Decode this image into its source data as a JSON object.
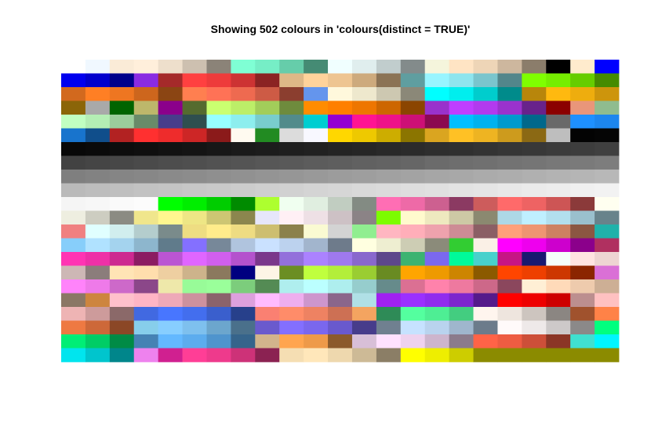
{
  "chart_data": {
    "type": "heatmap",
    "title": "Showing 502 colours in 'colours(distinct = TRUE)'",
    "xlabel": "",
    "ylabel": "",
    "grid": false,
    "legend": "none",
    "columns": 23,
    "rows": 22,
    "colours": [
      "#ffffff",
      "#f0f8ff",
      "#faebd7",
      "#ffefdb",
      "#eedfcc",
      "#cdc0b0",
      "#8b8378",
      "#7fffd4",
      "#76eec6",
      "#66cdaa",
      "#458b74",
      "#f0ffff",
      "#e0eeee",
      "#c1cdcd",
      "#838b8b",
      "#f5f5dc",
      "#ffe4c4",
      "#eed5b7",
      "#cdb79e",
      "#8b7d6b",
      "#000000",
      "#ffebcd",
      "#0000ff",
      "#0000ee",
      "#0000cd",
      "#00008b",
      "#8a2be2",
      "#a52a2a",
      "#ff4040",
      "#ee3b3b",
      "#cd3333",
      "#8b2323",
      "#deb887",
      "#ffd39b",
      "#eec591",
      "#cdaa7d",
      "#8b7355",
      "#5f9ea0",
      "#98f5ff",
      "#8ee5ee",
      "#7ac5cd",
      "#53868b",
      "#7fff00",
      "#76ee00",
      "#66cd00",
      "#458b00",
      "#d2691e",
      "#ff7f24",
      "#ee7621",
      "#cd661d",
      "#8b4513",
      "#ff7f50",
      "#ff7256",
      "#ee6a50",
      "#cd5b45",
      "#8b3e2f",
      "#6495ed",
      "#fff8dc",
      "#eee8cd",
      "#cdc8b1",
      "#8b8878",
      "#00ffff",
      "#00eeee",
      "#00cdcd",
      "#008b8b",
      "#b8860b",
      "#ffb90f",
      "#eead0e",
      "#cd950c",
      "#8b6508",
      "#a9a9a9",
      "#006400",
      "#bdb76b",
      "#8b008b",
      "#556b2f",
      "#caff70",
      "#bcee68",
      "#a2cd5a",
      "#6e8b3d",
      "#ff8c00",
      "#ff7f00",
      "#ee7600",
      "#cd6600",
      "#8b4500",
      "#9932cc",
      "#bf3eff",
      "#b23aee",
      "#9a32cd",
      "#68228b",
      "#8b0000",
      "#e9967a",
      "#8fbc8f",
      "#c1ffc1",
      "#b4eeb4",
      "#9bcd9b",
      "#698b69",
      "#483d8b",
      "#2f4f4f",
      "#97ffff",
      "#8deeee",
      "#79cdcd",
      "#528b8b",
      "#00ced1",
      "#9400d3",
      "#ff1493",
      "#ee1289",
      "#cd1076",
      "#8b0a50",
      "#00bfff",
      "#00b2ee",
      "#009acd",
      "#00688b",
      "#696969",
      "#1e90ff",
      "#1c86ee",
      "#1874cd",
      "#104e8b",
      "#b22222",
      "#ff3030",
      "#ee2c2c",
      "#cd2626",
      "#8b1a1a",
      "#fffaf0",
      "#228b22",
      "#dcdcdc",
      "#f8f8ff",
      "#ffd700",
      "#eec900",
      "#cdad00",
      "#8b7500",
      "#daa520",
      "#ffc125",
      "#eeb422",
      "#cd9b1d",
      "#8b6914",
      "#bebebe",
      "#030303",
      "#050505",
      "#080808",
      "#0a0a0a",
      "#0d0d0d",
      "#0f0f0f",
      "#121212",
      "#141414",
      "#171717",
      "#1a1a1a",
      "#1c1c1c",
      "#1f1f1f",
      "#212121",
      "#242424",
      "#262626",
      "#292929",
      "#2b2b2b",
      "#2e2e2e",
      "#303030",
      "#333333",
      "#363636",
      "#383838",
      "#3b3b3b",
      "#3d3d3d",
      "#404040",
      "#424242",
      "#454545",
      "#474747",
      "#4a4a4a",
      "#4d4d4d",
      "#4f4f4f",
      "#525252",
      "#545454",
      "#575757",
      "#595959",
      "#5c5c5c",
      "#5e5e5e",
      "#616161",
      "#636363",
      "#666666",
      "#6b6b6b",
      "#6e6e6e",
      "#707070",
      "#737373",
      "#757575",
      "#787878",
      "#7a7a7a",
      "#7d7d7d",
      "#7f7f7f",
      "#828282",
      "#858585",
      "#878787",
      "#8a8a8a",
      "#8c8c8c",
      "#8f8f8f",
      "#919191",
      "#949494",
      "#969696",
      "#999999",
      "#9c9c9c",
      "#9e9e9e",
      "#a1a1a1",
      "#a3a3a3",
      "#a6a6a6",
      "#a8a8a8",
      "#ababab",
      "#adadad",
      "#b0b0b0",
      "#b3b3b3",
      "#b5b5b5",
      "#b8b8b8",
      "#bababa",
      "#bdbdbd",
      "#bfbfbf",
      "#c2c2c2",
      "#c4c4c4",
      "#c7c7c7",
      "#c9c9c9",
      "#cccccc",
      "#cfcfcf",
      "#d1d1d1",
      "#d4d4d4",
      "#d6d6d6",
      "#d9d9d9",
      "#dbdbdb",
      "#dedede",
      "#e0e0e0",
      "#e3e3e3",
      "#e5e5e5",
      "#e8e8e8",
      "#ebebeb",
      "#ededed",
      "#f0f0f0",
      "#f2f2f2",
      "#f5f5f5",
      "#f7f7f7",
      "#fafafa",
      "#fcfcfc",
      "#00ff00",
      "#00ee00",
      "#00cd00",
      "#008b00",
      "#adff2f",
      "#f0fff0",
      "#e0eee0",
      "#c1cdc1",
      "#838b83",
      "#ff6eb4",
      "#ee6aa7",
      "#cd6090",
      "#8b3a62",
      "#cd5c5c",
      "#ff6a6a",
      "#ee6363",
      "#cd5555",
      "#8b3a3a",
      "#fffff0",
      "#eeeee0",
      "#cdcdc1",
      "#8b8b83",
      "#f0e68c",
      "#fff68f",
      "#eee685",
      "#cdc673",
      "#8b864e",
      "#e6e6fa",
      "#fff0f5",
      "#eee0e5",
      "#cdc1c5",
      "#8b8386",
      "#7cfc00",
      "#fffacd",
      "#eee9bf",
      "#cdc9a5",
      "#8b8970",
      "#add8e6",
      "#bfefff",
      "#b2dfee",
      "#9ac0cd",
      "#68838b",
      "#f08080",
      "#e0ffff",
      "#d1eeee",
      "#b4cdcd",
      "#7a8b8b",
      "#eedd82",
      "#ffec8b",
      "#eedc82",
      "#cdbe70",
      "#8b814c",
      "#fafad2",
      "#d3d3d3",
      "#90ee90",
      "#ffb6c1",
      "#ffaeb9",
      "#eea2ad",
      "#cd8c95",
      "#8b5f65",
      "#ffa07a",
      "#ee9572",
      "#cd8162",
      "#8b5742",
      "#20b2aa",
      "#87cefa",
      "#b0e2ff",
      "#a4d3ee",
      "#8db6cd",
      "#607b8b",
      "#8470ff",
      "#778899",
      "#b0c4de",
      "#cae1ff",
      "#bcd2ee",
      "#a2b5cd",
      "#6e7b8b",
      "#ffffe0",
      "#eeeed1",
      "#cdcdb4",
      "#8b8b7a",
      "#32cd32",
      "#faf0e6",
      "#ff00ff",
      "#ee00ee",
      "#cd00cd",
      "#8b008b",
      "#b03060",
      "#ff34b3",
      "#ee30a7",
      "#cd2990",
      "#8b1c62",
      "#ba55d3",
      "#e066ff",
      "#d15fee",
      "#b452cd",
      "#7a378b",
      "#9370db",
      "#ab82ff",
      "#9f79ee",
      "#8968cd",
      "#5d478b",
      "#3cb371",
      "#7b68ee",
      "#00fa9a",
      "#48d1cc",
      "#c71585",
      "#191970",
      "#f5fffa",
      "#ffe4e1",
      "#eed5d2",
      "#cdb7b5",
      "#8b7d7b",
      "#ffe4b5",
      "#ffdead",
      "#eecfa1",
      "#cdb38b",
      "#8b795e",
      "#000080",
      "#fdf5e6",
      "#6b8e23",
      "#c0ff3e",
      "#b3ee3a",
      "#9acd32",
      "#698b22",
      "#ffa500",
      "#ee9a00",
      "#cd8500",
      "#8b5a00",
      "#ff4500",
      "#ee4000",
      "#cd3700",
      "#8b2500",
      "#da70d6",
      "#ff83fa",
      "#ee7ae9",
      "#cd69c9",
      "#8b4789",
      "#eee8aa",
      "#98fb98",
      "#9aff9a",
      "#7ccd7c",
      "#548b54",
      "#afeeee",
      "#bbffff",
      "#aeeeee",
      "#96cdcd",
      "#668b8b",
      "#db7093",
      "#ff82ab",
      "#ee799f",
      "#cd6889",
      "#8b475d",
      "#ffefd5",
      "#ffdab9",
      "#eecbad",
      "#cdaf95",
      "#8b7765",
      "#cd853f",
      "#ffc0cb",
      "#ffb5c5",
      "#eea9b8",
      "#cd919e",
      "#8b636c",
      "#dda0dd",
      "#ffbbff",
      "#eeaeee",
      "#cd96cd",
      "#8b668b",
      "#b0e0e6",
      "#a020f0",
      "#9b30ff",
      "#912cee",
      "#7d26cd",
      "#551a8b",
      "#ff0000",
      "#ee0000",
      "#cd0000",
      "#bc8f8f",
      "#ffc1c1",
      "#eeb4b4",
      "#cd9b9b",
      "#8b6969",
      "#4169e1",
      "#4876ff",
      "#436eee",
      "#3a5fcd",
      "#27408b",
      "#fa8072",
      "#ff8c69",
      "#ee8262",
      "#cd7054",
      "#f4a460",
      "#2e8b57",
      "#54ff9f",
      "#4eee94",
      "#43cd80",
      "#fff5ee",
      "#eee5de",
      "#cdc5bf",
      "#8b8682",
      "#a0522d",
      "#ff8247",
      "#ee7942",
      "#cd6839",
      "#8b4726",
      "#87ceeb",
      "#87ceff",
      "#7ec0ee",
      "#6ca6cd",
      "#4a708b",
      "#6a5acd",
      "#836fff",
      "#7a67ee",
      "#6959cd",
      "#473c8b",
      "#708090",
      "#c6e2ff",
      "#b9d3ee",
      "#9fb6cd",
      "#6c7b8b",
      "#fffafa",
      "#eee9e9",
      "#cdc9c9",
      "#8b8989",
      "#00ff7f",
      "#00ee76",
      "#00cd66",
      "#008b45",
      "#4682b4",
      "#63b8ff",
      "#5cacee",
      "#4f94cd",
      "#36648b",
      "#d2b48c",
      "#ffa54f",
      "#ee9a49",
      "#8b5a2b",
      "#d8bfd8",
      "#ffe1ff",
      "#eed2ee",
      "#cdb5cd",
      "#8b7b8b",
      "#ff6347",
      "#ee5c42",
      "#cd4f39",
      "#8b3626",
      "#40e0d0",
      "#00f5ff",
      "#00e5ee",
      "#00c5cd",
      "#00868b",
      "#ee82ee",
      "#d02090",
      "#ff3e96",
      "#ee3a8c",
      "#cd3278",
      "#8b2252",
      "#f5deb3",
      "#ffe7ba",
      "#eed8ae",
      "#cdba96",
      "#8b7e66",
      "#ffff00",
      "#eeee00",
      "#cdcd00",
      "#8b8b00",
      "#8b8b00",
      "#8b8b00",
      "#8b8b00",
      "#8b8b00",
      "#8b8b00"
    ]
  }
}
